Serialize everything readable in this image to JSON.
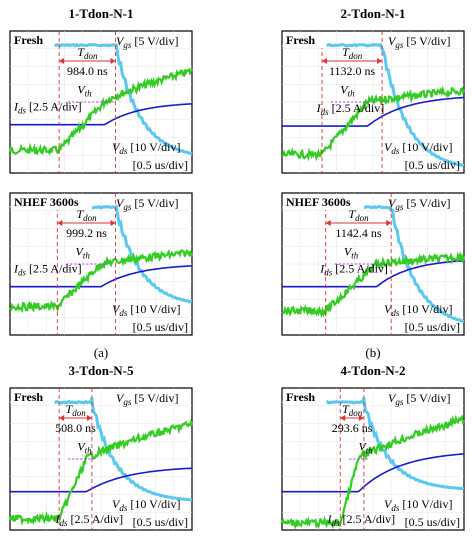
{
  "figure": {
    "panels": [
      {
        "id": "p1",
        "title": "1-Tdon-N-1",
        "box_label": "Fresh",
        "tdon_value": "984.0 ns",
        "vgs_label": "[5 V/div]",
        "vds_label": "[10 V/div]",
        "ids_label": "[2.5 A/div]",
        "time_scale": "[0.5 us/div]"
      },
      {
        "id": "p2",
        "title": "2-Tdon-N-1",
        "box_label": "Fresh",
        "tdon_value": "1132.0 ns",
        "vgs_label": "[5 V/div]",
        "vds_label": "[10 V/div]",
        "ids_label": "[2.5 A/div]",
        "time_scale": "[0.5 us/div]"
      },
      {
        "id": "p3",
        "title": "",
        "box_label": "NHEF 3600s",
        "tdon_value": "999.2 ns",
        "vgs_label": "[5 V/div]",
        "vds_label": "[10 V/div]",
        "ids_label": "[2.5 A/div]",
        "time_scale": "[0.5 us/div]"
      },
      {
        "id": "p4",
        "title": "",
        "box_label": "NHEF 3600s",
        "tdon_value": "1142.4 ns",
        "vgs_label": "[5 V/div]",
        "vds_label": "[10 V/div]",
        "ids_label": "[2.5 A/div]",
        "time_scale": "[0.5 us/div]"
      },
      {
        "id": "p5",
        "title": "3-Tdon-N-5",
        "box_label": "Fresh",
        "tdon_value": "508.0 ns",
        "vgs_label": "[5 V/div]",
        "vds_label": "[10 V/div]",
        "ids_label": "[2.5 A/div]",
        "time_scale": "[0.5 us/div]"
      },
      {
        "id": "p6",
        "title": "4-Tdon-N-2",
        "box_label": "Fresh",
        "tdon_value": "293.6 ns",
        "vgs_label": "[5 V/div]",
        "vds_label": "[10 V/div]",
        "ids_label": "[2.5 A/div]",
        "time_scale": "[0.5 us/div]"
      }
    ],
    "subfigure_labels": [
      "(a)",
      "(b)"
    ],
    "symbols": {
      "vgs": "V",
      "vgs_sub": "gs",
      "vds": "V",
      "vds_sub": "ds",
      "ids": "I",
      "ids_sub": "ds",
      "vth": "V",
      "vth_sub": "th",
      "tdon": "T",
      "tdon_sub": "don"
    },
    "colors": {
      "vgs": "#5bc8f0",
      "vds": "#8ee0f5",
      "ids": "#1a1acc",
      "green": "#33cc22",
      "marker": "#dd3333",
      "vth_line": "#aa33cc"
    }
  },
  "chart_data": [
    {
      "type": "line",
      "title": "1-Tdon-N-1",
      "annotation": "Fresh",
      "tdon_ns": 984.0,
      "time_scale_us_per_div": 0.5,
      "series": [
        {
          "name": "Vgs",
          "scale": "5 V/div"
        },
        {
          "name": "Vds",
          "scale": "10 V/div"
        },
        {
          "name": "Ids",
          "scale": "2.5 A/div"
        }
      ]
    },
    {
      "type": "line",
      "title": "2-Tdon-N-1",
      "annotation": "Fresh",
      "tdon_ns": 1132.0,
      "time_scale_us_per_div": 0.5,
      "series": [
        {
          "name": "Vgs",
          "scale": "5 V/div"
        },
        {
          "name": "Vds",
          "scale": "10 V/div"
        },
        {
          "name": "Ids",
          "scale": "2.5 A/div"
        }
      ]
    },
    {
      "type": "line",
      "title": "",
      "annotation": "NHEF 3600s",
      "tdon_ns": 999.2,
      "time_scale_us_per_div": 0.5,
      "series": [
        {
          "name": "Vgs",
          "scale": "5 V/div"
        },
        {
          "name": "Vds",
          "scale": "10 V/div"
        },
        {
          "name": "Ids",
          "scale": "2.5 A/div"
        }
      ]
    },
    {
      "type": "line",
      "title": "",
      "annotation": "NHEF 3600s",
      "tdon_ns": 1142.4,
      "time_scale_us_per_div": 0.5,
      "series": [
        {
          "name": "Vgs",
          "scale": "5 V/div"
        },
        {
          "name": "Vds",
          "scale": "10 V/div"
        },
        {
          "name": "Ids",
          "scale": "2.5 A/div"
        }
      ]
    },
    {
      "type": "line",
      "title": "3-Tdon-N-5",
      "annotation": "Fresh",
      "tdon_ns": 508.0,
      "time_scale_us_per_div": 0.5,
      "series": [
        {
          "name": "Vgs",
          "scale": "5 V/div"
        },
        {
          "name": "Vds",
          "scale": "10 V/div"
        },
        {
          "name": "Ids",
          "scale": "2.5 A/div"
        }
      ]
    },
    {
      "type": "line",
      "title": "4-Tdon-N-2",
      "annotation": "Fresh",
      "tdon_ns": 293.6,
      "time_scale_us_per_div": 0.5,
      "series": [
        {
          "name": "Vgs",
          "scale": "5 V/div"
        },
        {
          "name": "Vds",
          "scale": "10 V/div"
        },
        {
          "name": "Ids",
          "scale": "2.5 A/div"
        }
      ]
    }
  ]
}
